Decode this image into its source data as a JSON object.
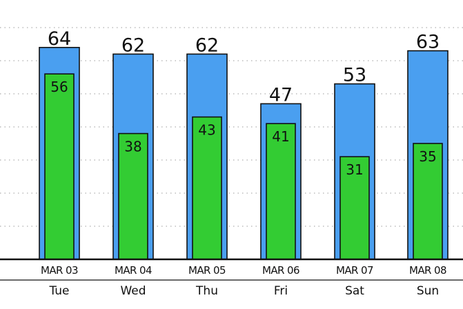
{
  "chart_data": {
    "type": "bar",
    "categories": [
      "MAR 03",
      "MAR 04",
      "MAR 05",
      "MAR 06",
      "MAR 07",
      "MAR 08"
    ],
    "days": [
      "Tue",
      "Wed",
      "Thu",
      "Fri",
      "Sat",
      "Sun"
    ],
    "series": [
      {
        "values": [
          64,
          62,
          62,
          47,
          53,
          63
        ],
        "color": "#4a9ff0"
      },
      {
        "values": [
          56,
          38,
          43,
          41,
          31,
          35
        ],
        "color": "#33cc33"
      }
    ],
    "title": "",
    "xlabel": "",
    "ylabel": "",
    "ylim": [
      0,
      70
    ],
    "grid": true,
    "grid_style": "dotted",
    "data_labels": true
  }
}
